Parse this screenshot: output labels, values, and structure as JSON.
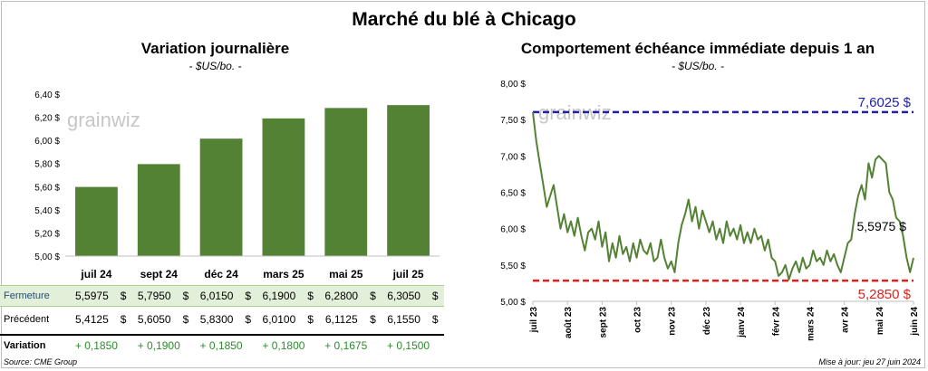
{
  "title": "Marché du blé à Chicago",
  "left_chart": {
    "title": "Variation  journalière",
    "subtitle": "- $US/bo. -"
  },
  "right_chart": {
    "title": "Comportement  échéance immédiate depuis 1 an",
    "subtitle": "- $US/bo. -"
  },
  "watermark": "grainwiz",
  "table": {
    "headers": [
      "juil 24",
      "sept 24",
      "déc 24",
      "mars 25",
      "mai 25",
      "juil 25"
    ],
    "fermeture_label": "Fermeture",
    "fermeture": [
      "5,5975",
      "5,7950",
      "6,0150",
      "6,1900",
      "6,2800",
      "6,3050"
    ],
    "precedent_label": "Précédent",
    "precedent": [
      "5,4125",
      "5,6050",
      "5,8300",
      "6,0100",
      "6,1125",
      "6,1550"
    ],
    "variation_label": "Variation",
    "variation": [
      "+ 0,1850",
      "+ 0,1900",
      "+ 0,1850",
      "+ 0,1800",
      "+ 0,1675",
      "+ 0,1500"
    ],
    "currency": "$"
  },
  "footer": {
    "source": "Source: CME Group",
    "update": "Mise à jour: jeu 27 juin 2024"
  },
  "colors": {
    "bar": "#548235",
    "line": "#548235",
    "max_line": "#1f1fa8",
    "min_line": "#e0201b",
    "label_current": "#000000"
  },
  "chart_data": [
    {
      "type": "bar",
      "title": "Variation  journalière",
      "categories": [
        "juil 24",
        "sept 24",
        "déc 24",
        "mars 25",
        "mai 25",
        "juil 25"
      ],
      "values": [
        5.5975,
        5.795,
        6.015,
        6.19,
        6.28,
        6.305
      ],
      "ylim": [
        5.0,
        6.4
      ],
      "yticks": [
        "5,00 $",
        "5,20 $",
        "5,40 $",
        "5,60 $",
        "5,80 $",
        "6,00 $",
        "6,20 $",
        "6,40 $"
      ],
      "ytick_values": [
        5.0,
        5.2,
        5.4,
        5.6,
        5.8,
        6.0,
        6.2,
        6.4
      ]
    },
    {
      "type": "line",
      "title": "Comportement  échéance immédiate depuis 1 an",
      "ylim": [
        5.0,
        8.0
      ],
      "yticks": [
        "5,00 $",
        "5,50 $",
        "6,00 $",
        "6,50 $",
        "7,00 $",
        "7,50 $",
        "8,00 $"
      ],
      "ytick_values": [
        5.0,
        5.5,
        6.0,
        6.5,
        7.0,
        7.5,
        8.0
      ],
      "xticks": [
        "juil 23",
        "août 23",
        "sept 23",
        "oct 23",
        "nov 23",
        "déc 23",
        "janv 24",
        "févr 24",
        "mars 24",
        "avr 24",
        "mai 24",
        "juin 24"
      ],
      "max_label": "7,6025 $",
      "max_value": 7.6025,
      "min_label": "5,2850 $",
      "min_value": 5.285,
      "current_label": "5,5975 $",
      "current_value": 5.5975,
      "series": [
        {
          "values": [
            7.6,
            7.2,
            6.9,
            6.6,
            6.3,
            6.45,
            6.6,
            6.3,
            6.0,
            6.2,
            5.95,
            6.1,
            5.9,
            6.15,
            5.9,
            5.7,
            5.95,
            6.0,
            5.85,
            6.1,
            5.75,
            5.95,
            5.55,
            5.8,
            5.6,
            5.9,
            5.65,
            5.75,
            5.55,
            5.8,
            5.6,
            5.85,
            5.7,
            5.65,
            5.8,
            5.55,
            5.6,
            5.85,
            5.6,
            5.45,
            5.55,
            5.4,
            5.8,
            6.05,
            6.2,
            6.4,
            6.1,
            6.3,
            6.0,
            6.25,
            6.1,
            5.95,
            6.1,
            5.85,
            6.0,
            5.8,
            6.1,
            5.9,
            6.0,
            5.85,
            6.05,
            5.8,
            5.95,
            5.8,
            6.0,
            5.85,
            5.9,
            5.7,
            5.85,
            5.6,
            5.55,
            5.35,
            5.4,
            5.5,
            5.3,
            5.45,
            5.55,
            5.4,
            5.6,
            5.45,
            5.5,
            5.7,
            5.55,
            5.6,
            5.5,
            5.7,
            5.55,
            5.65,
            5.5,
            5.4,
            5.6,
            5.8,
            5.85,
            6.2,
            6.45,
            6.6,
            6.4,
            6.9,
            6.7,
            6.95,
            7.0,
            6.95,
            6.9,
            6.5,
            6.4,
            6.15,
            6.1,
            5.9,
            5.6,
            5.4,
            5.5975
          ]
        }
      ]
    }
  ]
}
